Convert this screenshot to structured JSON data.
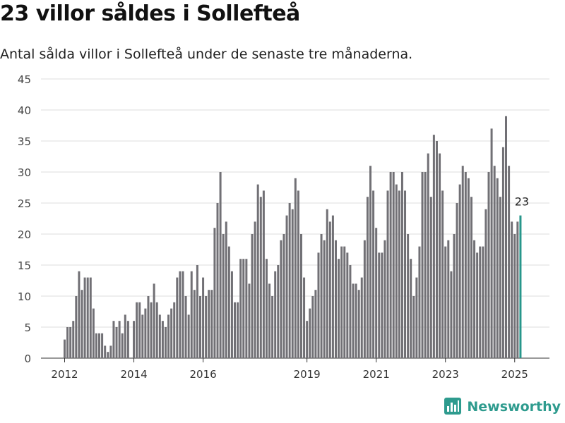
{
  "header": {
    "title": "23 villor såldes i Sollefteå",
    "subtitle": "Antal sålda villor i Sollefteå under de senaste tre månaderna."
  },
  "brand": {
    "name": "Newsworthy",
    "icon": "bar-chart-logo-icon"
  },
  "colors": {
    "bar": "#717075",
    "highlight": "#27968b",
    "grid": "#dddddd",
    "axis": "#333333",
    "brand": "#2e9b8e"
  },
  "chart_data": {
    "type": "bar",
    "x_axis": "monthly, 2012-01 to 2025-03",
    "x_ticks": [
      "2012",
      "2014",
      "2016",
      "2019",
      "2021",
      "2023",
      "2025"
    ],
    "y_ticks": [
      "0",
      "5",
      "10",
      "15",
      "20",
      "25",
      "30",
      "35",
      "40",
      "45"
    ],
    "ylim": [
      0,
      45
    ],
    "grid": true,
    "values": [
      3,
      5,
      5,
      6,
      10,
      14,
      11,
      13,
      13,
      13,
      8,
      4,
      4,
      4,
      2,
      1,
      2,
      6,
      5,
      6,
      4,
      7,
      6,
      0,
      6,
      9,
      9,
      7,
      8,
      10,
      9,
      12,
      9,
      7,
      6,
      5,
      7,
      8,
      9,
      13,
      14,
      14,
      10,
      7,
      14,
      11,
      15,
      10,
      13,
      10,
      11,
      11,
      21,
      25,
      30,
      20,
      22,
      18,
      14,
      9,
      9,
      16,
      16,
      16,
      12,
      20,
      22,
      28,
      26,
      27,
      16,
      12,
      10,
      14,
      15,
      19,
      20,
      23,
      25,
      24,
      29,
      27,
      20,
      13,
      6,
      8,
      10,
      11,
      17,
      20,
      19,
      24,
      22,
      23,
      19,
      16,
      18,
      18,
      17,
      15,
      12,
      12,
      11,
      13,
      19,
      26,
      31,
      27,
      21,
      17,
      17,
      19,
      27,
      30,
      30,
      28,
      27,
      30,
      27,
      20,
      16,
      10,
      13,
      18,
      30,
      30,
      33,
      26,
      36,
      35,
      33,
      27,
      18,
      19,
      14,
      20,
      25,
      28,
      31,
      30,
      29,
      26,
      19,
      17,
      18,
      18,
      24,
      30,
      37,
      31,
      29,
      26,
      34,
      39,
      31,
      22,
      20,
      22,
      23
    ],
    "highlight_value": 23,
    "highlight_label": "23"
  }
}
